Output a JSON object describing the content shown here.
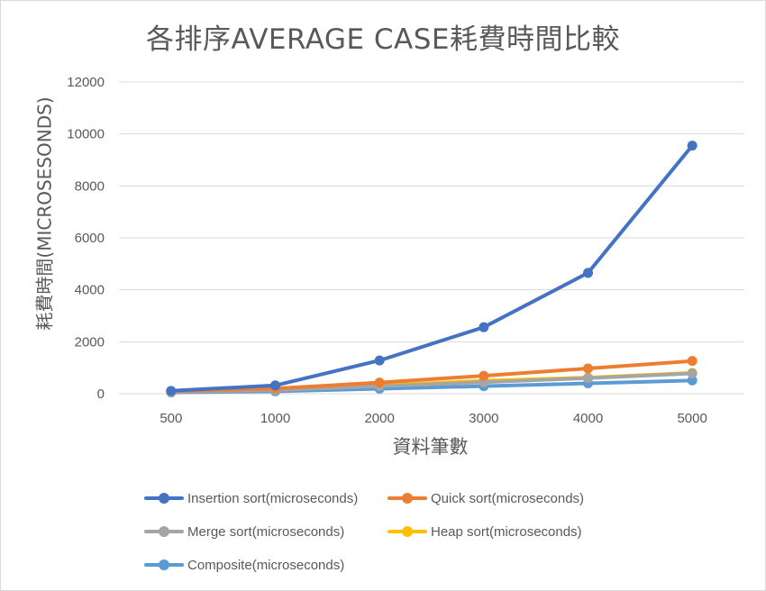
{
  "chart_data": {
    "type": "line",
    "title": "各排序AVERAGE CASE耗費時間比較",
    "xlabel": "資料筆數",
    "ylabel": "耗費時間(MICROSESONDS)",
    "categories": [
      "500",
      "1000",
      "2000",
      "3000",
      "4000",
      "5000"
    ],
    "ylim": [
      0,
      12000
    ],
    "yticks": [
      "0",
      "2000",
      "4000",
      "6000",
      "8000",
      "10000",
      "12000"
    ],
    "grid": true,
    "legend_position": "bottom",
    "series": [
      {
        "name": "Insertion sort(microseconds)",
        "color": "#4472c4",
        "values": [
          110,
          320,
          1280,
          2560,
          4650,
          9550
        ]
      },
      {
        "name": "Quick sort(microseconds)",
        "color": "#ed7d31",
        "values": [
          100,
          200,
          430,
          690,
          970,
          1260
        ]
      },
      {
        "name": "Merge sort(microseconds)",
        "color": "#a5a5a5",
        "values": [
          70,
          140,
          290,
          440,
          600,
          780
        ]
      },
      {
        "name": "Heap sort(microseconds)",
        "color": "#ffc000",
        "values": [
          80,
          160,
          320,
          500,
          620,
          800
        ]
      },
      {
        "name": "Composite(microseconds)",
        "color": "#5b9bd5",
        "values": [
          50,
          90,
          190,
          290,
          400,
          510
        ]
      }
    ]
  }
}
